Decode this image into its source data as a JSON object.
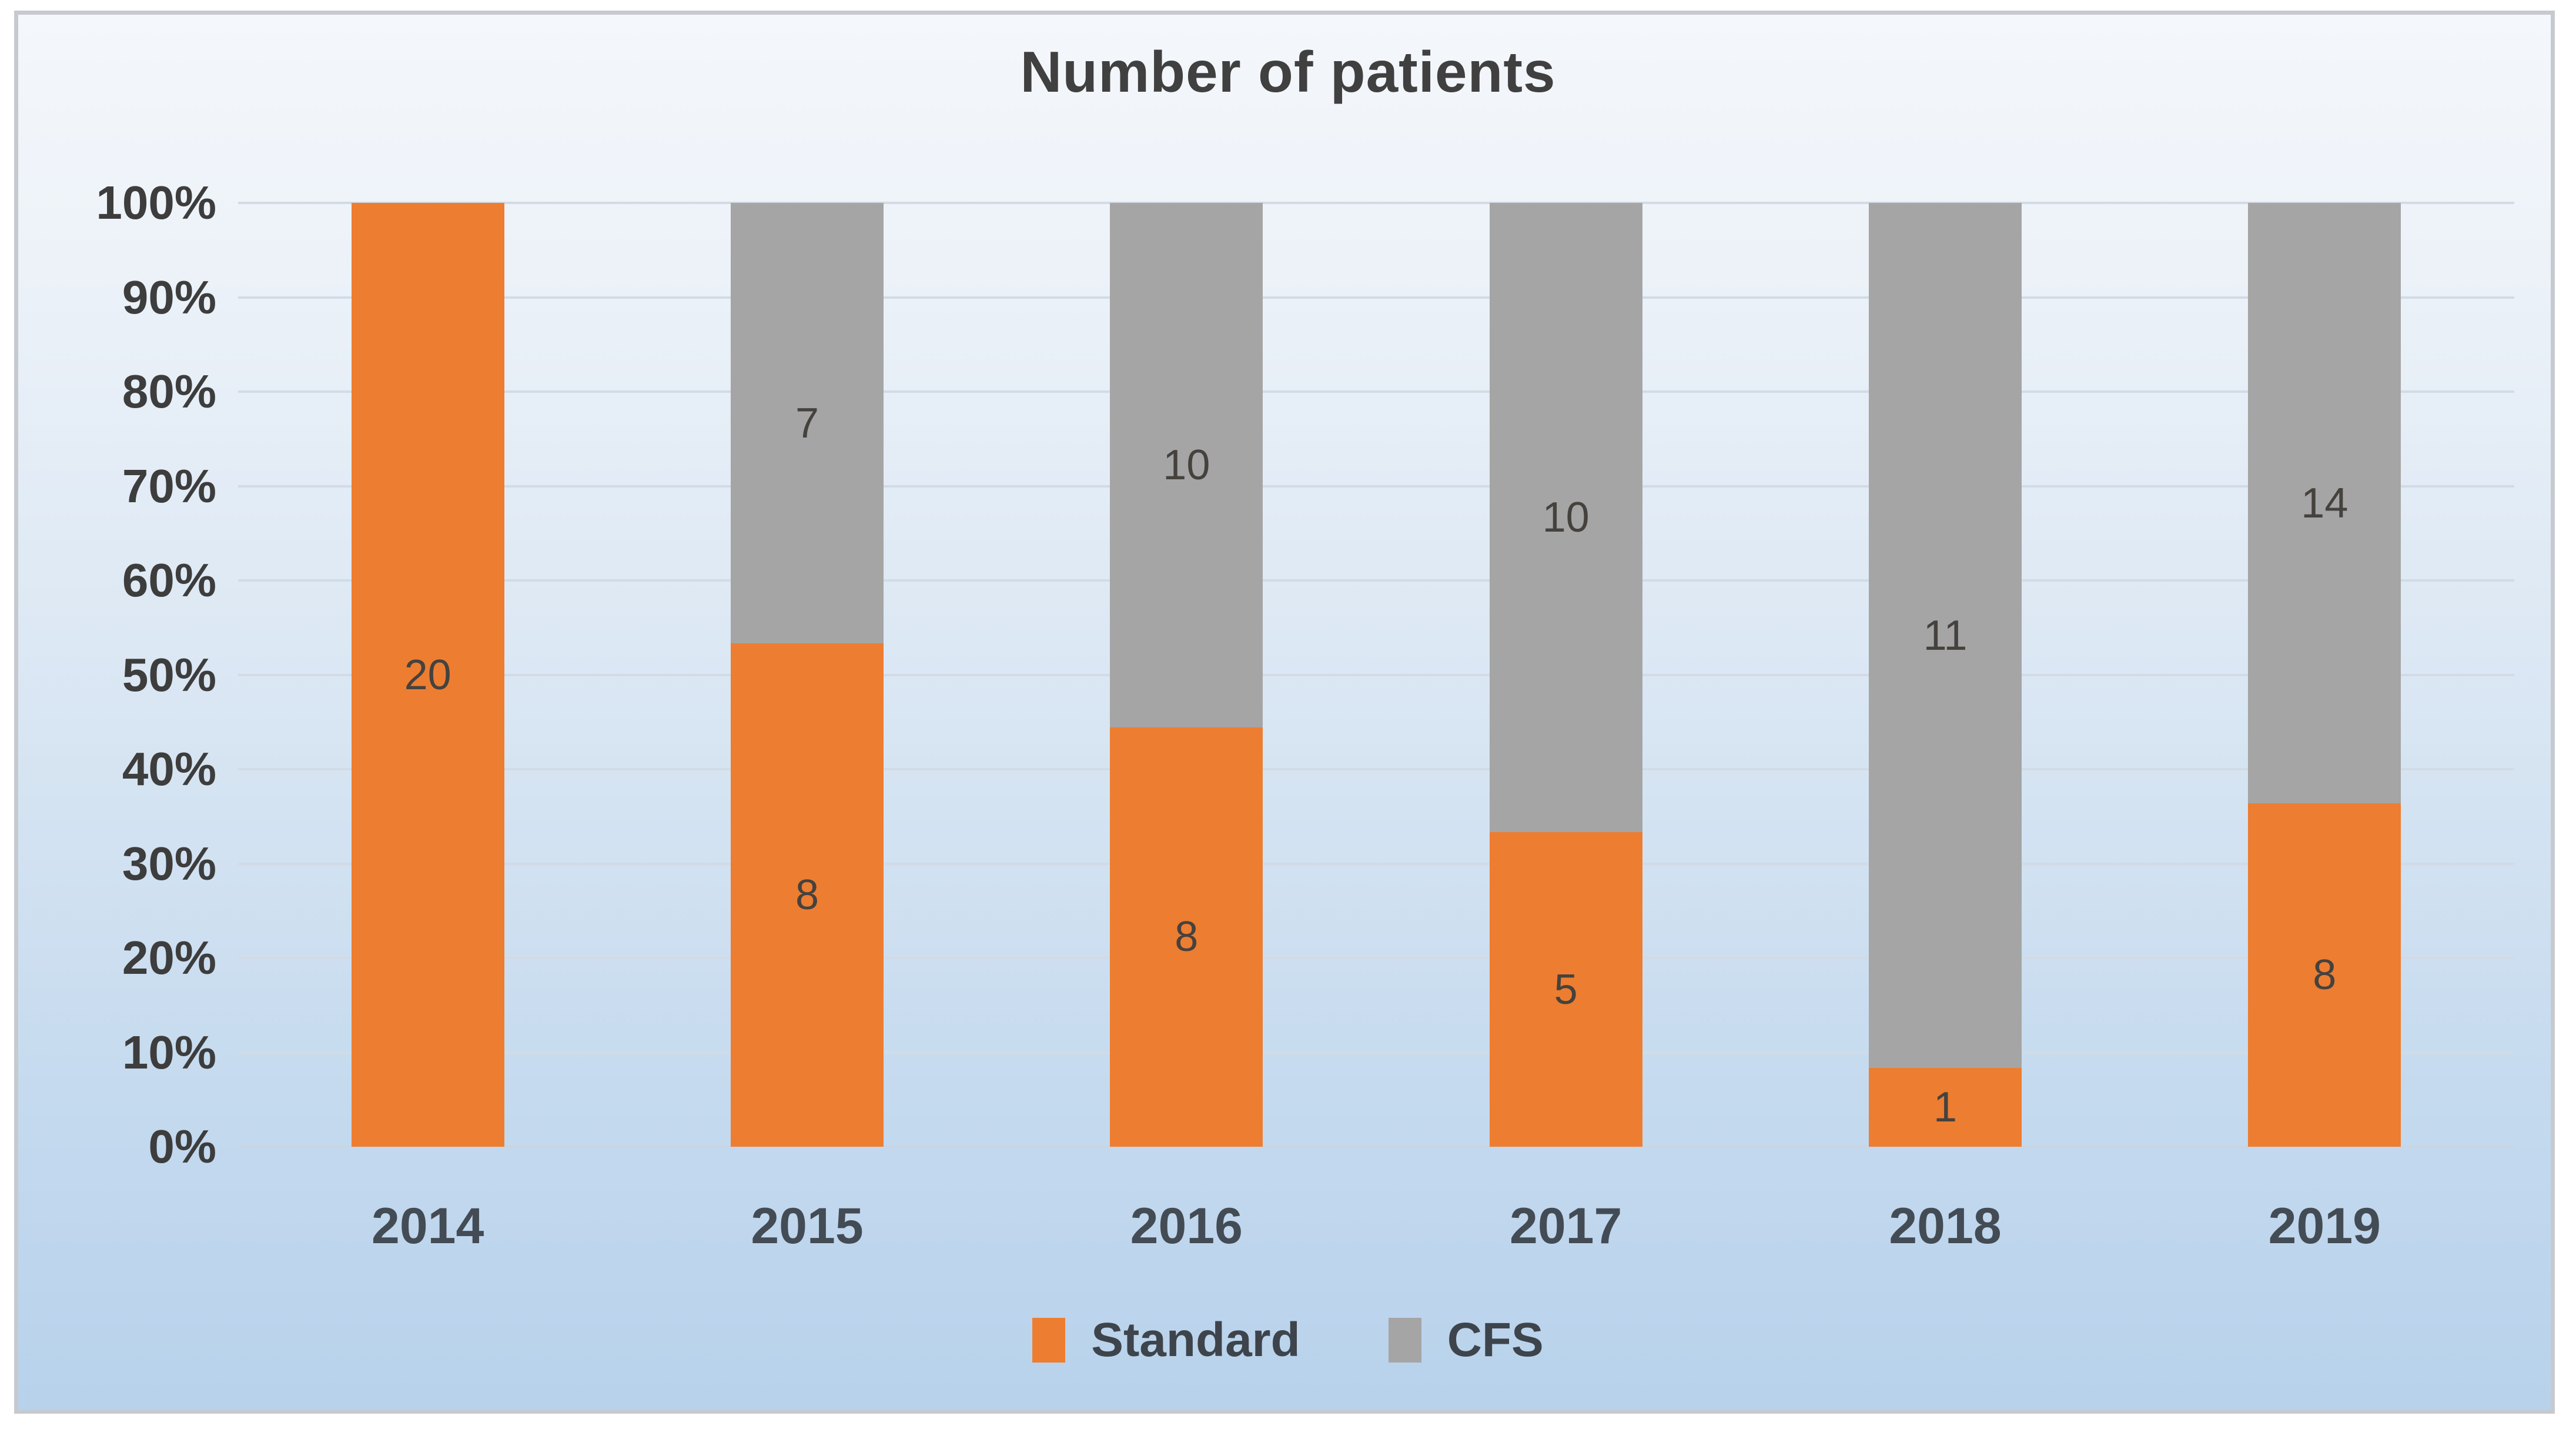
{
  "chart_data": {
    "type": "bar",
    "subtype": "stacked-100-percent",
    "title": "Number of patients",
    "categories": [
      "2014",
      "2015",
      "2016",
      "2017",
      "2018",
      "2019"
    ],
    "series": [
      {
        "name": "Standard",
        "color": "#ED7D31",
        "values": [
          20,
          8,
          8,
          5,
          1,
          8
        ]
      },
      {
        "name": "CFS",
        "color": "#A5A5A5",
        "values": [
          0,
          7,
          10,
          10,
          11,
          14
        ]
      }
    ],
    "data_labels_shown": true,
    "y_axis": {
      "min": 0,
      "max": 100,
      "ticks": [
        "0%",
        "10%",
        "20%",
        "30%",
        "40%",
        "50%",
        "60%",
        "70%",
        "80%",
        "90%",
        "100%"
      ],
      "grid": true
    },
    "legend": {
      "position": "bottom",
      "entries": [
        "Standard",
        "CFS"
      ]
    }
  },
  "colors": {
    "standard_series": "#ED7D31",
    "cfs_series": "#A5A5A5",
    "title_text": "#404040",
    "axis_text": "#3d3d3d",
    "gridline": "#d2dbe5",
    "frame_border": "#c6cacf",
    "background_top": "#f4f7fb",
    "background_bottom": "#b8d2ec"
  }
}
